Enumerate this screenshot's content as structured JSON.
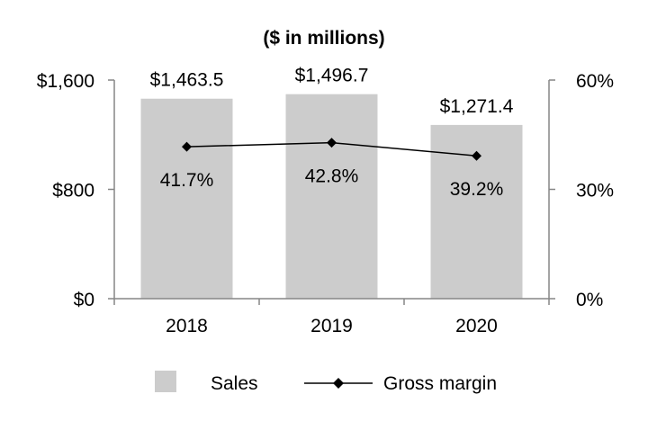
{
  "chart_data": {
    "type": "bar",
    "title": "($ in millions)",
    "categories": [
      "2018",
      "2019",
      "2020"
    ],
    "series": [
      {
        "name": "Sales",
        "kind": "bar",
        "axis": "left",
        "color": "#cccccc",
        "values": [
          1463.5,
          1496.7,
          1271.4
        ],
        "labels": [
          "$1,463.5",
          "$1,496.7",
          "$1,271.4"
        ]
      },
      {
        "name": "Gross margin",
        "kind": "line",
        "axis": "right",
        "color": "#000000",
        "values": [
          41.7,
          42.8,
          39.2
        ],
        "labels": [
          "41.7%",
          "42.8%",
          "39.2%"
        ]
      }
    ],
    "y_left": {
      "ylim": [
        0,
        1600
      ],
      "ticks": [
        0,
        800,
        1600
      ],
      "tick_labels": [
        "$0",
        "$800",
        "$1,600"
      ]
    },
    "y_right": {
      "ylim": [
        0,
        60
      ],
      "ticks": [
        0,
        30,
        60
      ],
      "tick_labels": [
        "0%",
        "30%",
        "60%"
      ]
    },
    "grid": false,
    "legend": {
      "position": "bottom",
      "entries": [
        "Sales",
        "Gross margin"
      ]
    }
  }
}
